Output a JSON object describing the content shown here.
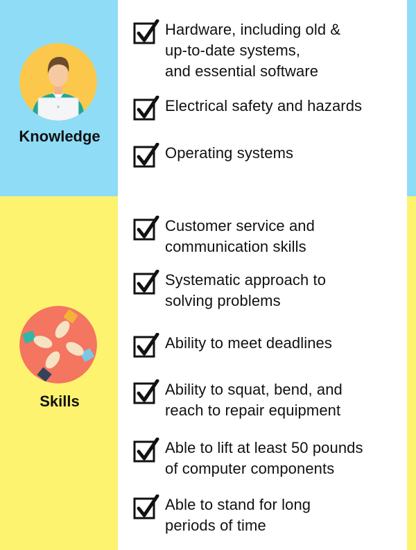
{
  "knowledge": {
    "label": "Knowledge",
    "icon": "person-at-laptop-icon",
    "items": [
      "Hardware, including old &\nup-to-date systems,\nand essential software",
      "Electrical safety and hazards",
      "Operating systems"
    ]
  },
  "skills": {
    "label": "Skills",
    "icon": "joined-hands-icon",
    "items": [
      "Customer service and\ncommunication skills",
      "Systematic approach to\nsolving problems",
      "Ability to meet deadlines",
      "Ability to squat, bend, and\nreach to repair equipment",
      "Able to lift at least 50 pounds\nof computer components",
      "Able to stand for long\nperiods of time"
    ]
  },
  "colors": {
    "knowledge_band": "#8fdcf6",
    "skills_band": "#fdf36f",
    "knowledge_avatar": "#fbc84b",
    "skills_avatar": "#f47560"
  },
  "checkbox_icon": "checkbox-checked-icon"
}
